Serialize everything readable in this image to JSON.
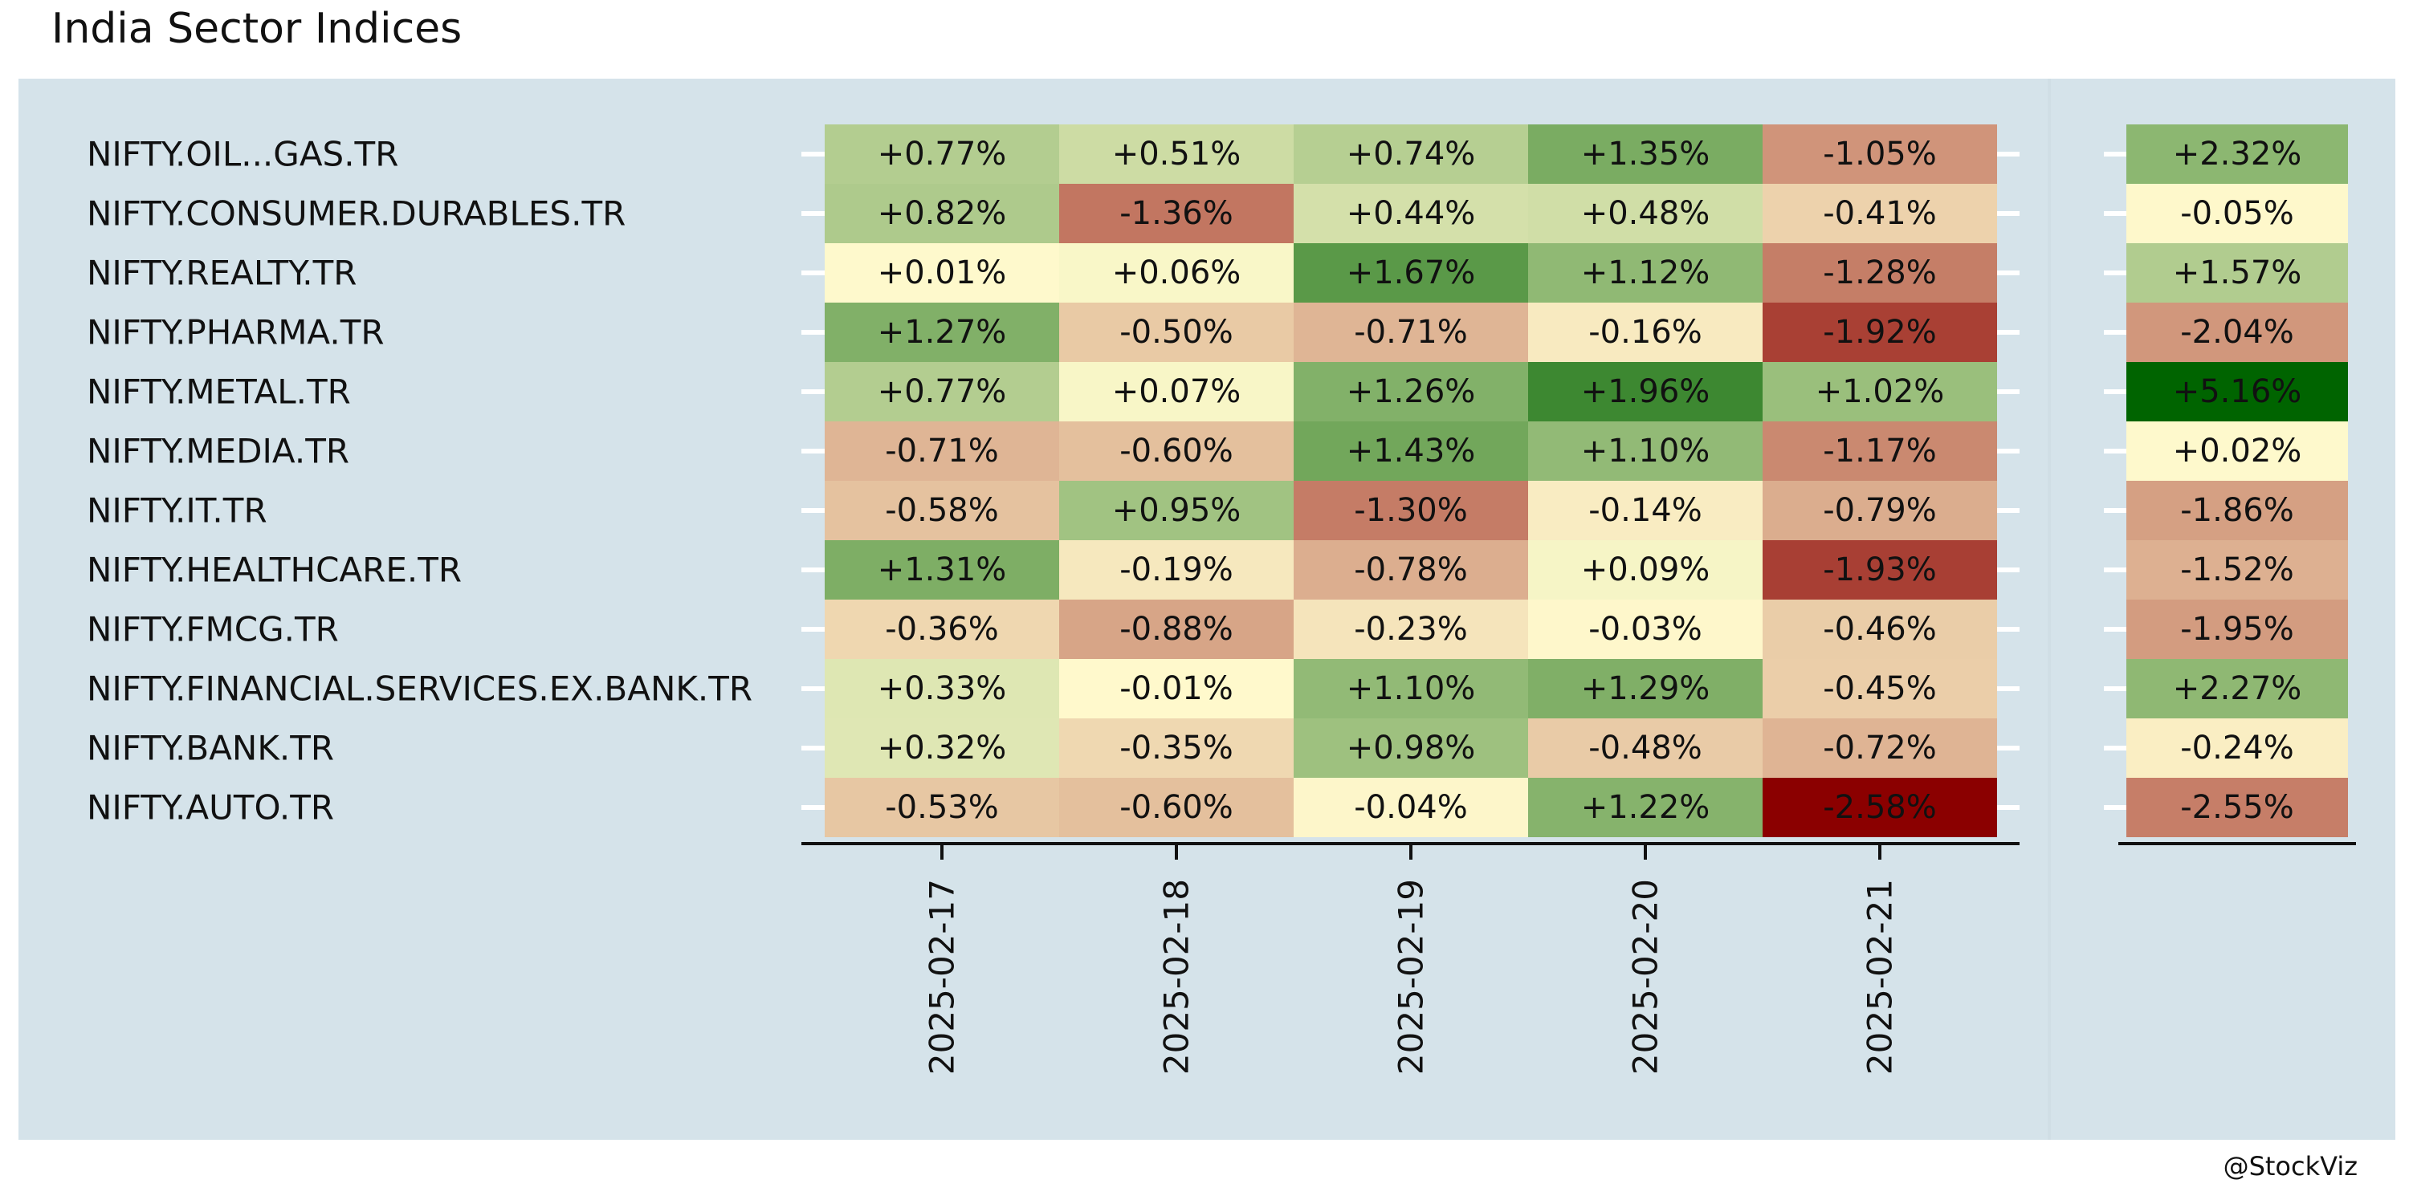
{
  "title": "India Sector Indices",
  "credit": "@StockViz",
  "chart_data": {
    "type": "heatmap",
    "title": "India Sector Indices",
    "xlabel": "",
    "ylabel": "",
    "legend": "none",
    "color_scale": {
      "negative": "#8b0000",
      "neutral": "#fffacd",
      "positive": "#006400"
    },
    "rows": [
      "NIFTY.OIL...GAS.TR",
      "NIFTY.CONSUMER.DURABLES.TR",
      "NIFTY.REALTY.TR",
      "NIFTY.PHARMA.TR",
      "NIFTY.METAL.TR",
      "NIFTY.MEDIA.TR",
      "NIFTY.IT.TR",
      "NIFTY.HEALTHCARE.TR",
      "NIFTY.FMCG.TR",
      "NIFTY.FINANCIAL.SERVICES.EX.BANK.TR",
      "NIFTY.BANK.TR",
      "NIFTY.AUTO.TR"
    ],
    "columns": [
      "2025-02-17",
      "2025-02-18",
      "2025-02-19",
      "2025-02-20",
      "2025-02-21"
    ],
    "values": [
      [
        0.77,
        0.51,
        0.74,
        1.35,
        -1.05
      ],
      [
        0.82,
        -1.36,
        0.44,
        0.48,
        -0.41
      ],
      [
        0.01,
        0.06,
        1.67,
        1.12,
        -1.28
      ],
      [
        1.27,
        -0.5,
        -0.71,
        -0.16,
        -1.92
      ],
      [
        0.77,
        0.07,
        1.26,
        1.96,
        1.02
      ],
      [
        -0.71,
        -0.6,
        1.43,
        1.1,
        -1.17
      ],
      [
        -0.58,
        0.95,
        -1.3,
        -0.14,
        -0.79
      ],
      [
        1.31,
        -0.19,
        -0.78,
        0.09,
        -1.93
      ],
      [
        -0.36,
        -0.88,
        -0.23,
        -0.03,
        -0.46
      ],
      [
        0.33,
        -0.01,
        1.1,
        1.29,
        -0.45
      ],
      [
        0.32,
        -0.35,
        0.98,
        -0.48,
        -0.72
      ],
      [
        -0.53,
        -0.6,
        -0.04,
        1.22,
        -2.58
      ]
    ],
    "labels": [
      [
        "+0.77%",
        "+0.51%",
        "+0.74%",
        "+1.35%",
        "-1.05%"
      ],
      [
        "+0.82%",
        "-1.36%",
        "+0.44%",
        "+0.48%",
        "-0.41%"
      ],
      [
        "+0.01%",
        "+0.06%",
        "+1.67%",
        "+1.12%",
        "-1.28%"
      ],
      [
        "+1.27%",
        "-0.50%",
        "-0.71%",
        "-0.16%",
        "-1.92%"
      ],
      [
        "+0.77%",
        "+0.07%",
        "+1.26%",
        "+1.96%",
        "+1.02%"
      ],
      [
        "-0.71%",
        "-0.60%",
        "+1.43%",
        "+1.10%",
        "-1.17%"
      ],
      [
        "-0.58%",
        "+0.95%",
        "-1.30%",
        "-0.14%",
        "-0.79%"
      ],
      [
        "+1.31%",
        "-0.19%",
        "-0.78%",
        "+0.09%",
        "-1.93%"
      ],
      [
        "-0.36%",
        "-0.88%",
        "-0.23%",
        "-0.03%",
        "-0.46%"
      ],
      [
        "+0.33%",
        "-0.01%",
        "+1.10%",
        "+1.29%",
        "-0.45%"
      ],
      [
        "+0.32%",
        "-0.35%",
        "+0.98%",
        "-0.48%",
        "-0.72%"
      ],
      [
        "-0.53%",
        "-0.60%",
        "-0.04%",
        "+1.22%",
        "-2.58%"
      ]
    ],
    "total_values": [
      2.32,
      -0.05,
      1.57,
      -2.04,
      5.16,
      0.02,
      -1.86,
      -1.52,
      -1.95,
      2.27,
      -0.24,
      -2.55
    ],
    "total_labels": [
      "+2.32%",
      "-0.05%",
      "+1.57%",
      "-2.04%",
      "+5.16%",
      "+0.02%",
      "-1.86%",
      "-1.52%",
      "-1.95%",
      "+2.27%",
      "-0.24%",
      "-2.55%"
    ]
  }
}
